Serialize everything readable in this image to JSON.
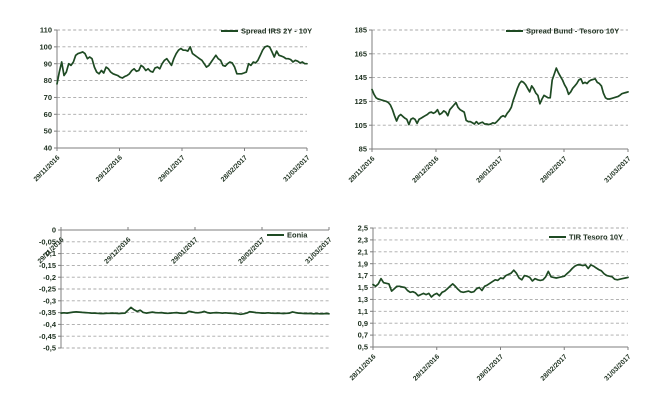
{
  "page": {
    "background_color": "#ffffff"
  },
  "style": {
    "series_color": "#1e4a23",
    "grid_color": "#a8a8a8",
    "axis_color": "#7f7f7f",
    "text_color": "#1c2f1e"
  },
  "chart_data": [
    {
      "id": "spread-irs-2y-10y",
      "type": "line",
      "legend": "Spread IRS 2Y - 10Y",
      "legend_position": "top-right",
      "grid": "horizontal-dashed",
      "x_axis_position": "bottom",
      "x_tick_labels": [
        "29/11/2016",
        "29/12/2016",
        "29/01/2017",
        "28/02/2017",
        "31/03/2017"
      ],
      "y_tick_labels": [
        "110",
        "100",
        "90",
        "80",
        "70",
        "60",
        "50",
        "40"
      ],
      "ylim": [
        40,
        110
      ],
      "values": [
        78,
        85,
        91,
        83,
        85,
        90,
        89,
        91,
        95,
        96,
        96.5,
        97,
        96,
        93,
        94,
        93,
        88,
        85,
        84,
        86,
        84.5,
        88,
        87,
        85,
        84,
        83.5,
        83,
        82,
        81.5,
        82.5,
        83,
        84,
        86,
        87,
        85.5,
        86,
        89,
        88,
        86,
        87,
        85.5,
        85,
        87.5,
        88,
        87,
        90,
        92,
        93,
        91,
        89,
        93,
        96,
        98,
        99,
        98,
        98,
        97.5,
        100,
        96,
        95,
        94,
        93,
        92,
        90,
        88,
        89,
        91,
        93,
        95,
        93,
        92,
        89,
        88.5,
        90,
        91,
        90.5,
        88,
        84,
        84,
        84,
        84.5,
        85,
        90,
        89,
        91,
        90.5,
        92,
        95,
        98,
        100,
        100.5,
        100,
        97,
        94,
        97.5,
        95,
        94.5,
        94,
        93,
        93,
        92.5,
        91,
        92,
        91.5,
        90.5,
        91,
        90,
        90
      ]
    },
    {
      "id": "spread-bund-tesoro-10y",
      "type": "line",
      "legend": "Spread Bund - Tesoro 10Y",
      "legend_position": "top-right",
      "grid": "horizontal-dashed",
      "x_axis_position": "bottom",
      "x_tick_labels": [
        "28/11/2016",
        "28/12/2016",
        "28/01/2017",
        "28/02/2017",
        "31/03/2017"
      ],
      "y_tick_labels": [
        "185",
        "165",
        "145",
        "125",
        "105",
        "85"
      ],
      "ylim": [
        85,
        185
      ],
      "values": [
        135,
        131,
        128,
        127,
        126.5,
        126,
        125.5,
        125,
        124,
        122,
        118,
        113,
        108.5,
        112.5,
        114,
        112.5,
        111,
        110,
        105.5,
        110,
        111,
        110,
        106.5,
        110,
        111,
        112,
        113,
        114,
        115.5,
        116,
        115,
        116,
        118,
        114,
        115,
        117,
        116,
        113,
        118,
        120,
        122,
        124,
        120,
        118,
        117,
        116,
        109,
        108,
        108,
        107,
        106,
        108,
        106,
        107,
        107.5,
        106,
        106,
        105.5,
        106,
        107,
        106.5,
        108,
        110,
        112,
        113,
        112,
        115,
        117,
        120,
        126,
        131,
        136,
        140,
        142,
        141,
        139,
        136,
        133,
        138,
        135.5,
        132,
        130,
        123,
        127,
        130,
        129,
        128,
        128,
        143,
        148,
        153,
        149,
        146,
        143,
        139,
        136,
        131,
        133,
        136,
        138,
        140,
        143,
        144,
        140,
        141,
        140,
        142,
        143,
        143.5,
        144,
        141,
        140,
        138,
        132,
        128,
        127,
        127,
        127.5,
        128,
        128.5,
        129,
        130,
        131.5,
        132,
        132.5,
        133
      ]
    },
    {
      "id": "eonia",
      "type": "line",
      "legend": "Eonia",
      "legend_position": "top-right",
      "grid": "horizontal-dashed",
      "x_axis_position": "top",
      "x_tick_labels": [
        "29/11/2016",
        "29/12/2016",
        "29/01/2017",
        "28/02/2017",
        "31/03/2017"
      ],
      "y_tick_labels": [
        "0",
        "-0,05",
        "-0,1",
        "-0,15",
        "-0,2",
        "-0,25",
        "-0,3",
        "-0,35",
        "-0,4",
        "-0,45",
        "-0,5"
      ],
      "ylim": [
        -0.5,
        0
      ],
      "values": [
        -0.352,
        -0.351,
        -0.352,
        -0.35,
        -0.348,
        -0.347,
        -0.348,
        -0.349,
        -0.35,
        -0.351,
        -0.352,
        -0.352,
        -0.353,
        -0.354,
        -0.354,
        -0.353,
        -0.353,
        -0.352,
        -0.353,
        -0.354,
        -0.353,
        -0.352,
        -0.34,
        -0.328,
        -0.338,
        -0.345,
        -0.34,
        -0.349,
        -0.352,
        -0.35,
        -0.348,
        -0.35,
        -0.351,
        -0.35,
        -0.352,
        -0.353,
        -0.352,
        -0.351,
        -0.35,
        -0.352,
        -0.353,
        -0.352,
        -0.345,
        -0.347,
        -0.35,
        -0.351,
        -0.349,
        -0.345,
        -0.35,
        -0.352,
        -0.351,
        -0.35,
        -0.351,
        -0.352,
        -0.351,
        -0.352,
        -0.353,
        -0.354,
        -0.355,
        -0.357,
        -0.355,
        -0.352,
        -0.346,
        -0.348,
        -0.35,
        -0.351,
        -0.352,
        -0.352,
        -0.351,
        -0.352,
        -0.353,
        -0.352,
        -0.353,
        -0.354,
        -0.353,
        -0.352,
        -0.347,
        -0.35,
        -0.352,
        -0.353,
        -0.354,
        -0.354,
        -0.354,
        -0.355,
        -0.354,
        -0.355,
        -0.355,
        -0.354,
        -0.355
      ]
    },
    {
      "id": "tir-tesoro-10y",
      "type": "line",
      "legend": "TIR Tesoro 10Y",
      "legend_position": "top-right",
      "grid": "horizontal-dashed",
      "x_axis_position": "bottom",
      "x_tick_labels": [
        "28/11/2016",
        "28/12/2016",
        "28/01/2017",
        "28/02/2017",
        "31/03/2017"
      ],
      "y_tick_labels": [
        "2,5",
        "2,3",
        "2,1",
        "1,9",
        "1,7",
        "1,5",
        "1,3",
        "1,1",
        "0,9",
        "0,7",
        "0,5"
      ],
      "ylim": [
        0.5,
        2.5
      ],
      "values": [
        1.55,
        1.52,
        1.56,
        1.65,
        1.58,
        1.57,
        1.56,
        1.44,
        1.48,
        1.52,
        1.52,
        1.51,
        1.5,
        1.45,
        1.42,
        1.43,
        1.41,
        1.36,
        1.38,
        1.4,
        1.38,
        1.4,
        1.34,
        1.38,
        1.4,
        1.36,
        1.42,
        1.44,
        1.48,
        1.52,
        1.56,
        1.52,
        1.47,
        1.43,
        1.42,
        1.43,
        1.44,
        1.42,
        1.43,
        1.48,
        1.5,
        1.45,
        1.52,
        1.54,
        1.57,
        1.6,
        1.63,
        1.62,
        1.66,
        1.65,
        1.7,
        1.72,
        1.74,
        1.79,
        1.74,
        1.66,
        1.63,
        1.7,
        1.69,
        1.67,
        1.61,
        1.65,
        1.63,
        1.62,
        1.63,
        1.68,
        1.77,
        1.68,
        1.67,
        1.66,
        1.67,
        1.68,
        1.69,
        1.73,
        1.77,
        1.82,
        1.86,
        1.88,
        1.88,
        1.87,
        1.88,
        1.82,
        1.88,
        1.86,
        1.83,
        1.8,
        1.78,
        1.73,
        1.7,
        1.69,
        1.68,
        1.64,
        1.63,
        1.64,
        1.65,
        1.66,
        1.67
      ]
    }
  ]
}
